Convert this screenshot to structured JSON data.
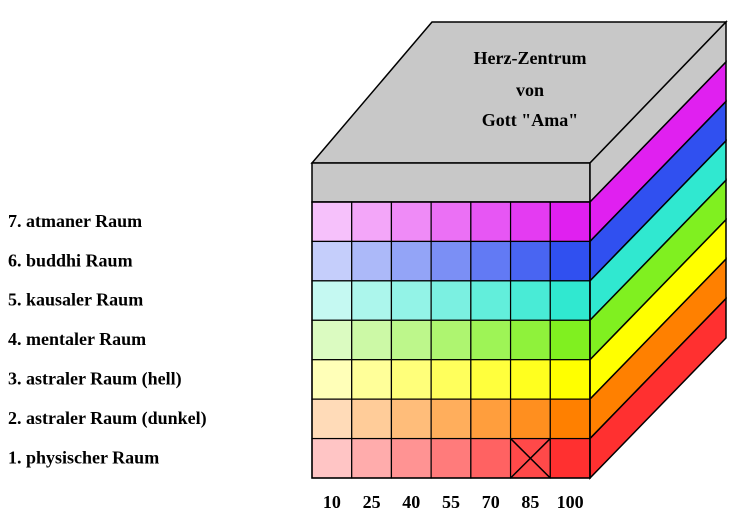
{
  "title_lines": [
    "Herz-Zentrum",
    "von",
    "Gott \"Ama\""
  ],
  "rows": [
    {
      "label": "7. atmaner Raum",
      "color": "#e020f0"
    },
    {
      "label": "6. buddhi Raum",
      "color": "#3050f0"
    },
    {
      "label": "5. kausaler Raum",
      "color": "#30e8d0"
    },
    {
      "label": "4. mentaler Raum",
      "color": "#80f020"
    },
    {
      "label": "3. astraler Raum (hell)",
      "color": "#ffff00"
    },
    {
      "label": "2. astraler Raum (dunkel)",
      "color": "#ff8000"
    },
    {
      "label": "1. physischer Raum",
      "color": "#ff3030"
    }
  ],
  "columns": [
    10,
    25,
    40,
    55,
    70,
    85,
    100
  ]
}
